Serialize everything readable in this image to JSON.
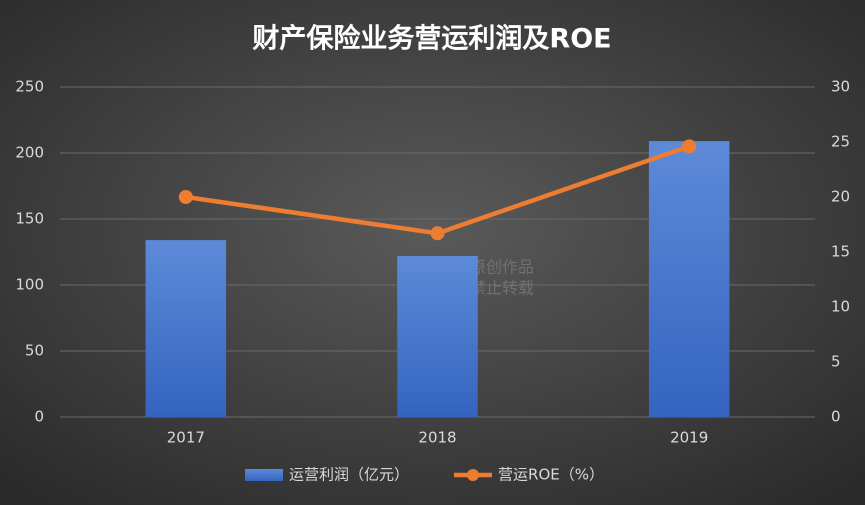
{
  "chart_data": {
    "type": "bar",
    "title": "财产保险业务营运利润及ROE",
    "categories": [
      "2017",
      "2018",
      "2019"
    ],
    "series": [
      {
        "name": "运营利润（亿元）",
        "color": "#4472c4",
        "values": [
          134,
          122,
          209
        ]
      },
      {
        "name": "营运ROE（%）",
        "color": "#ed7d31",
        "type": "line",
        "axis": "y2",
        "values": [
          20.0,
          16.7,
          24.6
        ]
      }
    ],
    "ylim": [
      0,
      250
    ],
    "yticks": [
      0,
      50,
      100,
      150,
      200,
      250
    ],
    "y2lim": [
      0,
      30
    ],
    "y2ticks": [
      0,
      5,
      10,
      15,
      20,
      25,
      30
    ],
    "grid": true,
    "legend": "bottom",
    "watermark": [
      "原创作品",
      "禁止转载"
    ]
  }
}
